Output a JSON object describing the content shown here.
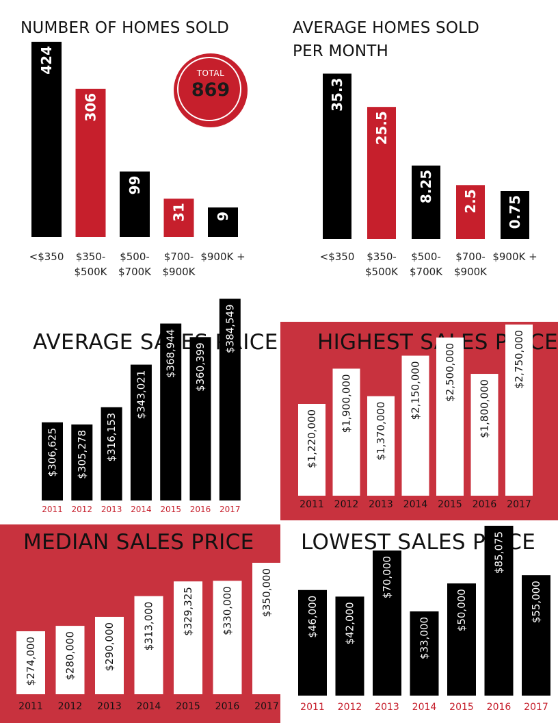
{
  "colors": {
    "black": "#000000",
    "red": "#c61f2c",
    "panel_red": "#c8323e",
    "white": "#ffffff"
  },
  "total": {
    "label": "TOTAL",
    "value": "869"
  },
  "chart_data": [
    {
      "id": "homes-sold",
      "type": "bar",
      "title": "NUMBER OF HOMES SOLD",
      "categories": [
        "<$350",
        "$350-\n$500K",
        "$500-\n$700K",
        "$700-\n$900K",
        "$900K +"
      ],
      "values": [
        424,
        306,
        99,
        31,
        9
      ],
      "labels": [
        "424",
        "306",
        "99",
        "31",
        "9"
      ],
      "bar_colors": [
        "black",
        "red",
        "black",
        "red",
        "black"
      ]
    },
    {
      "id": "avg-per-month",
      "type": "bar",
      "title": "AVERAGE HOMES SOLD\nPER MONTH",
      "categories": [
        "<$350",
        "$350-\n$500K",
        "$500-\n$700K",
        "$700-\n$900K",
        "$900K +"
      ],
      "values": [
        35.3,
        25.5,
        8.25,
        2.5,
        0.75
      ],
      "labels": [
        "35.3",
        "25.5",
        "8.25",
        "2.5",
        "0.75"
      ],
      "bar_colors": [
        "black",
        "red",
        "black",
        "red",
        "black"
      ]
    },
    {
      "id": "avg-sales-price",
      "type": "bar",
      "title": "AVERAGE SALES PRICE",
      "categories": [
        "2011",
        "2012",
        "2013",
        "2014",
        "2015",
        "2016",
        "2017"
      ],
      "values": [
        306625,
        305278,
        316153,
        343021,
        368944,
        360399,
        384549
      ],
      "labels": [
        "$306,625",
        "$305,278",
        "$316,153",
        "$343,021",
        "$368,944",
        "$360,399",
        "$384,549"
      ]
    },
    {
      "id": "highest-sales-price",
      "type": "bar",
      "title": "HIGHEST SALES PRICE",
      "categories": [
        "2011",
        "2012",
        "2013",
        "2014",
        "2015",
        "2016",
        "2017"
      ],
      "values": [
        1220000,
        1900000,
        1370000,
        2150000,
        2500000,
        1800000,
        2750000
      ],
      "labels": [
        "$1,220,000",
        "$1,900,000",
        "$1,370,000",
        "$2,150,000",
        "$2,500,000",
        "$1,800,000",
        "$2,750,000"
      ]
    },
    {
      "id": "median-sales-price",
      "type": "bar",
      "title": "MEDIAN SALES PRICE",
      "categories": [
        "2011",
        "2012",
        "2013",
        "2014",
        "2015",
        "2016",
        "2017"
      ],
      "values": [
        274000,
        280000,
        290000,
        313000,
        329325,
        330000,
        350000
      ],
      "labels": [
        "$274,000",
        "$280,000",
        "$290,000",
        "$313,000",
        "$329,325",
        "$330,000",
        "$350,000"
      ]
    },
    {
      "id": "lowest-sales-price",
      "type": "bar",
      "title": "LOWEST SALES PRICE",
      "categories": [
        "2011",
        "2012",
        "2013",
        "2014",
        "2015",
        "2016",
        "2017"
      ],
      "values": [
        46000,
        42000,
        70000,
        33000,
        50000,
        85075,
        55000
      ],
      "labels": [
        "$46,000",
        "$42,000",
        "$70,000",
        "$33,000",
        "$50,000",
        "$85,075",
        "$55,000"
      ]
    }
  ]
}
